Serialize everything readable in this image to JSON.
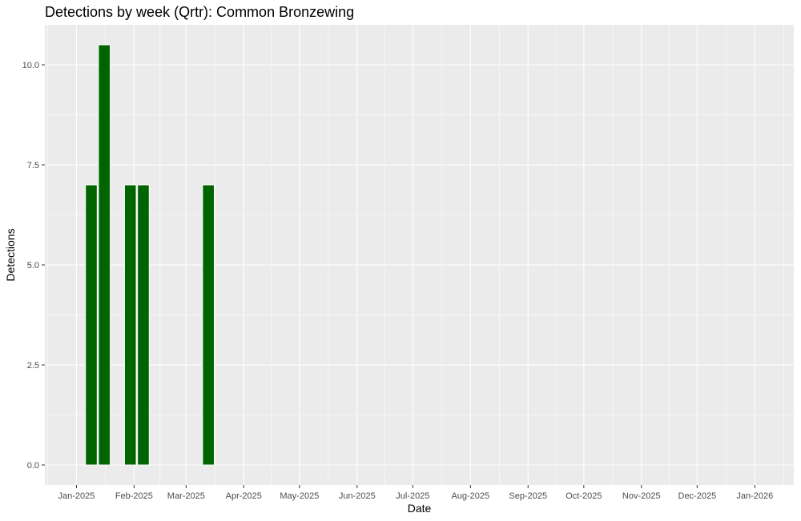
{
  "chart_data": {
    "type": "bar",
    "title": "Detections by week (Qrtr): Common Bronzewing",
    "xlabel": "Date",
    "ylabel": "Detections",
    "ylim": [
      -0.5,
      11.0
    ],
    "y_ticks": [
      0.0,
      2.5,
      5.0,
      7.5,
      10.0
    ],
    "y_tick_labels": [
      "0.0",
      "2.5",
      "5.0",
      "7.5",
      "10.0"
    ],
    "x_range": [
      "2024-12-15",
      "2026-01-22"
    ],
    "x_ticks": [
      "2025-01-01",
      "2025-02-01",
      "2025-03-01",
      "2025-04-01",
      "2025-05-01",
      "2025-06-01",
      "2025-07-01",
      "2025-08-01",
      "2025-09-01",
      "2025-10-01",
      "2025-11-01",
      "2025-12-01",
      "2026-01-01"
    ],
    "x_tick_labels": [
      "Jan-2025",
      "Feb-2025",
      "Mar-2025",
      "Apr-2025",
      "May-2025",
      "Jun-2025",
      "Jul-2025",
      "Aug-2025",
      "Sep-2025",
      "Oct-2025",
      "Nov-2025",
      "Dec-2025",
      "Jan-2026"
    ],
    "bar_width_days": 6.3,
    "series": [
      {
        "x": [
          "2025-01-09",
          "2025-01-16",
          "2025-01-30",
          "2025-02-06",
          "2025-03-13"
        ],
        "values": [
          7,
          10.5,
          7,
          7,
          7
        ]
      }
    ],
    "grid": true,
    "legend": "none",
    "colors": {
      "bar": "#006400",
      "panel": "#ebebeb",
      "grid": "#ffffff",
      "tick_text": "#4d4d4d",
      "tick_mark": "#333333"
    }
  }
}
